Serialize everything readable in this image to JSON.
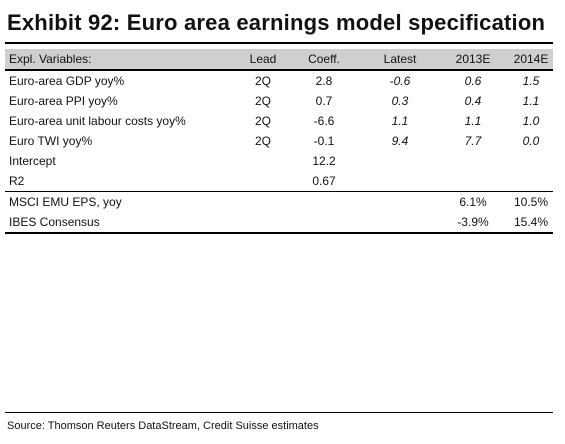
{
  "title": "Exhibit 92: Euro area earnings model specification",
  "headers": {
    "label": "Expl. Variables:",
    "lead": "Lead",
    "coeff": "Coeff.",
    "latest": "Latest",
    "e2013": "2013E",
    "e2014": "2014E"
  },
  "rows": [
    {
      "label": "Euro-area GDP yoy%",
      "lead": "2Q",
      "coeff": "2.8",
      "latest": "-0.6",
      "e2013": "0.6",
      "e2014": "1.5"
    },
    {
      "label": "Euro-area PPI yoy%",
      "lead": "2Q",
      "coeff": "0.7",
      "latest": "0.3",
      "e2013": "0.4",
      "e2014": "1.1"
    },
    {
      "label": "Euro-area unit labour costs yoy%",
      "lead": "2Q",
      "coeff": "-6.6",
      "latest": "1.1",
      "e2013": "1.1",
      "e2014": "1.0"
    },
    {
      "label": "Euro TWI yoy%",
      "lead": "2Q",
      "coeff": "-0.1",
      "latest": "9.4",
      "e2013": "7.7",
      "e2014": "0.0"
    },
    {
      "label": "Intercept",
      "lead": "",
      "coeff": "12.2",
      "latest": "",
      "e2013": "",
      "e2014": ""
    },
    {
      "label": "R2",
      "lead": "",
      "coeff": "0.67",
      "latest": "",
      "e2013": "",
      "e2014": ""
    }
  ],
  "outputs": [
    {
      "label": "MSCI EMU EPS, yoy",
      "e2013": "6.1%",
      "e2014": "10.5%"
    },
    {
      "label": "IBES Consensus",
      "e2013": "-3.9%",
      "e2014": "15.4%"
    }
  ],
  "source": "Source: Thomson Reuters DataStream, Credit Suisse estimates"
}
